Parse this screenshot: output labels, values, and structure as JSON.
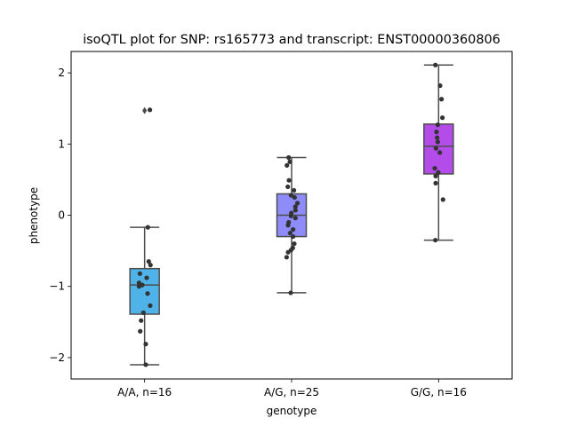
{
  "chart_data": {
    "type": "box",
    "title": "isoQTL plot for SNP: rs165773 and transcript: ENST00000360806",
    "xlabel": "genotype",
    "ylabel": "phenotype",
    "ylim": [
      -2.3,
      2.3
    ],
    "yticks": [
      -2,
      -1,
      0,
      1,
      2
    ],
    "categories": [
      "A/A, n=16",
      "A/G, n=25",
      "G/G, n=16"
    ],
    "colors": [
      "#4fb3ea",
      "#8e8cf9",
      "#b44ce9"
    ],
    "grid": false,
    "legend": "none",
    "boxes": [
      {
        "q1": -1.39,
        "median": -0.98,
        "q3": -0.75,
        "whisker_low": -2.1,
        "whisker_high": -0.17,
        "outliers": [
          1.47
        ],
        "points": [
          {
            "x": 0.18,
            "y": 1.48
          },
          {
            "x": 0.11,
            "y": -0.17
          },
          {
            "x": 0.14,
            "y": -0.65
          },
          {
            "x": 0.2,
            "y": -0.7
          },
          {
            "x": -0.16,
            "y": -0.82
          },
          {
            "x": 0.07,
            "y": -0.88
          },
          {
            "x": -0.19,
            "y": -0.95
          },
          {
            "x": -0.19,
            "y": -1.0
          },
          {
            "x": 0.19,
            "y": -1.27
          },
          {
            "x": -0.04,
            "y": -1.37
          },
          {
            "x": -0.12,
            "y": -1.48
          },
          {
            "x": -0.15,
            "y": -1.63
          },
          {
            "x": 0.04,
            "y": -1.81
          },
          {
            "x": 0.04,
            "y": -2.1
          },
          {
            "x": -0.08,
            "y": -0.98
          },
          {
            "x": 0.1,
            "y": -1.1
          }
        ]
      },
      {
        "q1": -0.3,
        "median": 0.0,
        "q3": 0.3,
        "whisker_low": -1.09,
        "whisker_high": 0.81,
        "outliers": [],
        "points": [
          {
            "x": -0.1,
            "y": 0.81
          },
          {
            "x": -0.06,
            "y": 0.75
          },
          {
            "x": -0.16,
            "y": 0.7
          },
          {
            "x": -0.09,
            "y": 0.49
          },
          {
            "x": -0.13,
            "y": 0.4
          },
          {
            "x": 0.08,
            "y": 0.35
          },
          {
            "x": -0.02,
            "y": 0.28
          },
          {
            "x": 0.2,
            "y": 0.17
          },
          {
            "x": 0.13,
            "y": 0.12
          },
          {
            "x": 0.13,
            "y": 0.07
          },
          {
            "x": -0.01,
            "y": 0.03
          },
          {
            "x": -0.02,
            "y": -0.01
          },
          {
            "x": 0.13,
            "y": -0.04
          },
          {
            "x": -0.1,
            "y": -0.1
          },
          {
            "x": -0.12,
            "y": -0.14
          },
          {
            "x": 0.05,
            "y": -0.2
          },
          {
            "x": -0.05,
            "y": -0.25
          },
          {
            "x": 0.05,
            "y": -0.3
          },
          {
            "x": 0.09,
            "y": -0.4
          },
          {
            "x": 0.04,
            "y": -0.46
          },
          {
            "x": -0.02,
            "y": -0.49
          },
          {
            "x": -0.12,
            "y": -0.52
          },
          {
            "x": -0.17,
            "y": -0.59
          },
          {
            "x": -0.03,
            "y": -1.09
          },
          {
            "x": 0.1,
            "y": 0.25
          }
        ]
      },
      {
        "q1": 0.58,
        "median": 0.97,
        "q3": 1.28,
        "whisker_low": -0.35,
        "whisker_high": 2.11,
        "outliers": [],
        "points": [
          {
            "x": -0.11,
            "y": 2.11
          },
          {
            "x": 0.05,
            "y": 1.82
          },
          {
            "x": 0.1,
            "y": 1.63
          },
          {
            "x": 0.13,
            "y": 1.37
          },
          {
            "x": -0.03,
            "y": 1.27
          },
          {
            "x": -0.07,
            "y": 1.17
          },
          {
            "x": -0.05,
            "y": 1.09
          },
          {
            "x": -0.03,
            "y": 1.03
          },
          {
            "x": -0.09,
            "y": 0.94
          },
          {
            "x": 0.04,
            "y": 0.88
          },
          {
            "x": -0.13,
            "y": 0.66
          },
          {
            "x": -0.01,
            "y": 0.6
          },
          {
            "x": -0.1,
            "y": 0.55
          },
          {
            "x": -0.1,
            "y": 0.45
          },
          {
            "x": 0.15,
            "y": 0.22
          },
          {
            "x": -0.11,
            "y": -0.35
          }
        ]
      }
    ]
  }
}
